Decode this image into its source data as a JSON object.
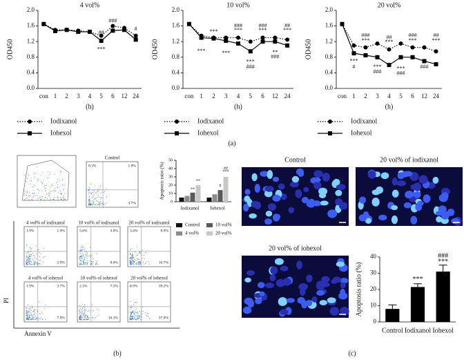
{
  "panel_labels": [
    "(a)",
    "(b)",
    "(c)"
  ],
  "chart_data": [
    {
      "type": "line",
      "title": "4 vol%",
      "categories": [
        "con",
        "1",
        "2",
        "3",
        "4",
        "5",
        "6",
        "12",
        "24"
      ],
      "x_label": "(h)",
      "y_label": "OD450",
      "ylim": [
        0,
        2
      ],
      "yticks": [
        {
          "value": 0,
          "label": "0.0"
        },
        0.4,
        0.8,
        1.2,
        1.6,
        {
          "value": 2,
          "label": "2.0"
        }
      ],
      "series": [
        {
          "name": "Iodixanol",
          "color": "#000000",
          "line_style": "dotted",
          "marker": "circle",
          "values": [
            1.65,
            1.5,
            1.5,
            1.48,
            1.45,
            1.35,
            1.6,
            1.55,
            1.35
          ]
        },
        {
          "name": "Iohexol",
          "color": "#000000",
          "line_style": "solid",
          "marker": "square",
          "values": [
            1.65,
            1.47,
            1.5,
            1.45,
            1.45,
            1.22,
            1.48,
            1.5,
            1.25
          ]
        }
      ],
      "annotations": [
        {
          "text": "##",
          "category": "5",
          "y": 1.42
        },
        {
          "text": "***",
          "category": "5",
          "y": 1.0
        },
        {
          "text": "###",
          "category": "6",
          "y": 1.72
        },
        {
          "text": "#",
          "category": "24",
          "y": 1.52
        }
      ]
    },
    {
      "type": "line",
      "title": "10 vol%",
      "categories": [
        "con",
        "1",
        "2",
        "3",
        "4",
        "5",
        "6",
        "12",
        "24"
      ],
      "x_label": "(h)",
      "y_label": "OD450",
      "ylim": [
        0,
        2
      ],
      "yticks": [
        {
          "value": 0,
          "label": "0.0"
        },
        0.4,
        0.8,
        1.2,
        1.6,
        {
          "value": 2,
          "label": "2.0"
        }
      ],
      "series": [
        {
          "name": "Iodixanol",
          "color": "#000000",
          "line_style": "dotted",
          "marker": "circle",
          "values": [
            1.65,
            1.35,
            1.3,
            1.3,
            1.3,
            1.2,
            1.3,
            1.3,
            1.25
          ]
        },
        {
          "name": "Iohexol",
          "color": "#000000",
          "line_style": "solid",
          "marker": "square",
          "values": [
            1.65,
            1.3,
            1.28,
            1.22,
            1.15,
            0.95,
            1.2,
            1.2,
            1.1
          ]
        }
      ],
      "annotations": [
        {
          "text": "***",
          "category": "1",
          "y": 0.95
        },
        {
          "text": "***",
          "category": "2",
          "y": 1.45
        },
        {
          "text": "***",
          "category": "3",
          "y": 0.9
        },
        {
          "text": "###",
          "category": "4",
          "y": 1.6
        },
        {
          "text": "***",
          "category": "4",
          "y": 1.48
        },
        {
          "text": "***",
          "category": "5",
          "y": 0.68
        },
        {
          "text": "###",
          "category": "5",
          "y": 0.55
        },
        {
          "text": "###",
          "category": "6",
          "y": 1.6
        },
        {
          "text": "***",
          "category": "6",
          "y": 1.48
        },
        {
          "text": "**",
          "category": "12",
          "y": 0.92
        },
        {
          "text": "###",
          "category": "12",
          "y": 0.8
        },
        {
          "text": "##",
          "category": "24",
          "y": 1.6
        },
        {
          "text": "***",
          "category": "24",
          "y": 1.48
        }
      ]
    },
    {
      "type": "line",
      "title": "20 vol%",
      "categories": [
        "con",
        "1",
        "2",
        "3",
        "4",
        "5",
        "6",
        "12",
        "24"
      ],
      "x_label": "(h)",
      "y_label": "OD450",
      "ylim": [
        0,
        2
      ],
      "yticks": [
        {
          "value": 0,
          "label": "0.0"
        },
        0.4,
        0.8,
        1.2,
        1.6,
        {
          "value": 2,
          "label": "2.0"
        }
      ],
      "series": [
        {
          "name": "Iodixanol",
          "color": "#000000",
          "line_style": "dotted",
          "marker": "circle",
          "values": [
            1.65,
            1.1,
            1.05,
            1.15,
            1.0,
            1.15,
            1.05,
            1.05,
            0.95
          ]
        },
        {
          "name": "Iohexol",
          "color": "#000000",
          "line_style": "solid",
          "marker": "square",
          "values": [
            1.65,
            0.9,
            0.85,
            0.8,
            0.6,
            0.8,
            0.8,
            0.7,
            0.62
          ]
        }
      ],
      "annotations": [
        {
          "text": "***",
          "category": "1",
          "y": 0.7
        },
        {
          "text": "#",
          "category": "1",
          "y": 0.55
        },
        {
          "text": "###",
          "category": "2",
          "y": 1.35
        },
        {
          "text": "***",
          "category": "2",
          "y": 1.22
        },
        {
          "text": "***",
          "category": "3",
          "y": 0.55
        },
        {
          "text": "###",
          "category": "3",
          "y": 0.42
        },
        {
          "text": "##",
          "category": "4",
          "y": 1.3
        },
        {
          "text": "***",
          "category": "4",
          "y": 1.18
        },
        {
          "text": "***",
          "category": "5",
          "y": 0.5
        },
        {
          "text": "###",
          "category": "5",
          "y": 0.38
        },
        {
          "text": "###",
          "category": "6",
          "y": 1.35
        },
        {
          "text": "***",
          "category": "6",
          "y": 1.22
        },
        {
          "text": "###",
          "category": "12",
          "y": 0.55
        },
        {
          "text": "##",
          "category": "24",
          "y": 1.35
        },
        {
          "text": "***",
          "category": "24",
          "y": 1.22
        }
      ]
    },
    {
      "type": "bar",
      "y_label": "Apoptosis ratio (%)",
      "categories": [
        "Iodixanol",
        "Iohexol"
      ],
      "ylim": [
        0,
        50
      ],
      "yticks": [
        0,
        10,
        20,
        30,
        40,
        50
      ],
      "series": [
        {
          "name": "Control",
          "color": "#111111",
          "values": [
            5,
            5
          ]
        },
        {
          "name": "4 vol%",
          "color": "#8c8c8c",
          "values": [
            7,
            9
          ]
        },
        {
          "name": "10 vol%",
          "color": "#5a5a5a",
          "values": [
            11,
            14
          ]
        },
        {
          "name": "20 vol%",
          "color": "#c8c8c8",
          "values": [
            20,
            30
          ]
        }
      ],
      "legend_order": [
        0,
        2,
        1,
        3
      ],
      "annotations": [
        {
          "text": "**",
          "series": 3,
          "category": 0,
          "y": 25
        },
        {
          "text": "**",
          "series": 2,
          "category": 0,
          "y": 15
        },
        {
          "text": "##",
          "series": 3,
          "category": 1,
          "y": 40
        },
        {
          "text": "***",
          "series": 3,
          "category": 1,
          "y": 36
        },
        {
          "text": "#",
          "series": 2,
          "category": 1,
          "y": 19
        }
      ]
    },
    {
      "type": "bar",
      "y_label": "Apoptosis ratio (%)",
      "categories": [
        "Control",
        "Iodixanol",
        "Iohexol"
      ],
      "values": [
        8,
        21.5,
        31
      ],
      "errors": [
        2.5,
        2,
        4
      ],
      "color": "#000000",
      "ylim": [
        0,
        40
      ],
      "yticks": [
        0,
        10,
        20,
        30,
        40
      ],
      "annotations": [
        {
          "text": "***",
          "category": 1,
          "y": 26
        },
        {
          "text": "***",
          "category": 2,
          "y": 37
        },
        {
          "text": "###",
          "category": 2,
          "y": 40.5
        }
      ]
    }
  ],
  "flow_cytometry": {
    "y_label": "PI",
    "x_label": "Annexin V",
    "control": {
      "title": "Control",
      "quadrants": [
        "0.3%",
        "1.8%",
        "3.7%"
      ]
    },
    "samples": [
      {
        "title": "4 vol% of iodixanol",
        "quadrants": [
          "1.9%",
          "1.9%",
          "5.9%"
        ]
      },
      {
        "title": "10 vol% of iodixanol",
        "quadrants": [
          "5.6%",
          "3.0%",
          "8.6%"
        ]
      },
      {
        "title": "20 vol% of iodixanol",
        "quadrants": [
          "3.4%",
          "8.9%",
          "16.7%"
        ]
      },
      {
        "title": "4 vol% of iohexol",
        "quadrants": [
          "1.9%",
          "3.7%",
          "7.9%"
        ]
      },
      {
        "title": "10 vol% of iohexol",
        "quadrants": [
          "2.1%",
          "7.5%",
          "16.3%"
        ]
      },
      {
        "title": "20 vol% of iohexol",
        "quadrants": [
          "8.9%",
          "39.2%",
          "37.9%"
        ]
      }
    ]
  },
  "fluorescence_images": [
    "Control",
    "20 vol% of iodixanol",
    "20 vol% of iohexol"
  ]
}
